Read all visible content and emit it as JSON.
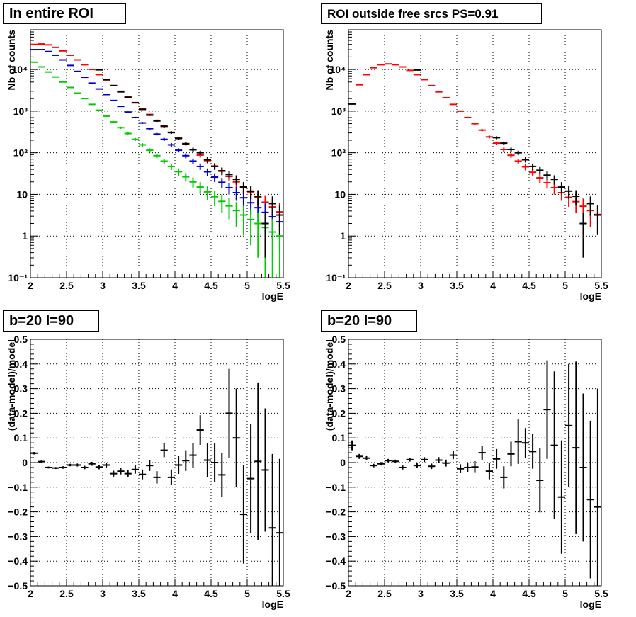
{
  "colors": {
    "data": "#000000",
    "model": "#ff0000",
    "blue": "#0000cc",
    "green": "#00cc00"
  },
  "chart_data": [
    {
      "type": "scatter",
      "title": "In entire ROI",
      "xlabel": "logE",
      "ylabel": "Nb of counts",
      "xlim": [
        2,
        5.5
      ],
      "ylim": [
        0.1,
        90000
      ],
      "yscale": "log",
      "grid": true,
      "x_ticks": [
        "2",
        "2.5",
        "3",
        "3.5",
        "4",
        "4.5",
        "5",
        "5.5"
      ],
      "y_ticks": [
        "10⁻¹",
        "1",
        "10",
        "10²",
        "10³",
        "10⁴"
      ],
      "x": [
        2.05,
        2.15,
        2.25,
        2.35,
        2.45,
        2.55,
        2.65,
        2.75,
        2.85,
        2.95,
        3.05,
        3.15,
        3.25,
        3.35,
        3.45,
        3.55,
        3.65,
        3.75,
        3.85,
        3.95,
        4.05,
        4.15,
        4.25,
        4.35,
        4.45,
        4.55,
        4.65,
        4.75,
        4.85,
        4.95,
        5.05,
        5.15,
        5.25,
        5.35,
        5.45
      ],
      "series": [
        {
          "color": "#ff0000",
          "values": [
            40000,
            41000,
            39000,
            34000,
            28000,
            22000,
            17000,
            13000,
            10000,
            7500,
            5600,
            4100,
            3000,
            2200,
            1600,
            1150,
            830,
            600,
            430,
            310,
            225,
            165,
            120,
            88,
            65,
            48,
            36,
            27,
            20,
            15,
            11.5,
            8.5,
            6.5,
            5,
            3.8
          ]
        },
        {
          "color": "#0000cc",
          "values": [
            30000,
            30000,
            27000,
            22000,
            17000,
            12500,
            9000,
            6500,
            4700,
            3400,
            2500,
            1800,
            1300,
            950,
            700,
            520,
            380,
            280,
            210,
            155,
            115,
            85,
            63,
            47,
            35,
            26,
            19.5,
            14.5,
            11,
            8.3,
            6.3,
            4.8,
            3.7,
            2.9,
            2.2
          ]
        },
        {
          "color": "#00cc00",
          "values": [
            15000,
            11500,
            8700,
            6600,
            5000,
            3700,
            2700,
            2000,
            1450,
            1050,
            760,
            550,
            400,
            290,
            210,
            155,
            115,
            85,
            63,
            47,
            35,
            26.5,
            20,
            15,
            11.5,
            8.8,
            6.8,
            5.3,
            4.1,
            3.2,
            2.5,
            2,
            1.6,
            1.25,
            1
          ]
        },
        {
          "color": "#000000",
          "values": [
            null,
            null,
            null,
            null,
            null,
            null,
            null,
            null,
            null,
            9800,
            5700,
            4100,
            2900,
            2150,
            1580,
            1100,
            800,
            580,
            435,
            305,
            220,
            165,
            118,
            100,
            68,
            47,
            37,
            30,
            23,
            15,
            12,
            9,
            2,
            6,
            3.2
          ]
        }
      ]
    },
    {
      "type": "scatter",
      "title": "ROI outside free srcs PS=0.91",
      "xlabel": "logE",
      "ylabel": "Nb of counts",
      "xlim": [
        2,
        5.5
      ],
      "ylim": [
        0.1,
        90000
      ],
      "yscale": "log",
      "grid": true,
      "x_ticks": [
        "2",
        "2.5",
        "3",
        "3.5",
        "4",
        "4.5",
        "5",
        "5.5"
      ],
      "y_ticks": [
        "10⁻¹",
        "1",
        "10",
        "10²",
        "10³",
        "10⁴"
      ],
      "x": [
        2.05,
        2.15,
        2.25,
        2.35,
        2.45,
        2.55,
        2.65,
        2.75,
        2.85,
        2.95,
        3.05,
        3.15,
        3.25,
        3.35,
        3.45,
        3.55,
        3.65,
        3.75,
        3.85,
        3.95,
        4.05,
        4.15,
        4.25,
        4.35,
        4.45,
        4.55,
        4.65,
        4.75,
        4.85,
        4.95,
        5.05,
        5.15,
        5.25,
        5.35,
        5.45
      ],
      "series": [
        {
          "color": "#ff0000",
          "values": [
            1500,
            4300,
            7500,
            11000,
            13000,
            13600,
            13000,
            11500,
            9500,
            7500,
            5700,
            4100,
            2900,
            2100,
            1450,
            1000,
            700,
            500,
            350,
            240,
            170,
            120,
            87,
            63,
            46,
            34,
            25,
            19,
            14.5,
            11,
            8.5,
            6.7,
            5.2,
            4.1,
            3.3
          ]
        },
        {
          "color": "#000000",
          "values": [
            1480,
            null,
            null,
            null,
            null,
            null,
            null,
            null,
            null,
            9700,
            null,
            null,
            null,
            null,
            null,
            null,
            null,
            null,
            null,
            null,
            230,
            170,
            120,
            100,
            68,
            47,
            38,
            29,
            23,
            15,
            12,
            9,
            2,
            6,
            3.2
          ]
        }
      ]
    },
    {
      "type": "scatter",
      "title": "b=20 l=90",
      "xlabel": "logE",
      "ylabel": "(data-model)/model",
      "xlim": [
        2,
        5.5
      ],
      "ylim": [
        -0.5,
        0.5
      ],
      "grid": true,
      "x_ticks": [
        "2",
        "2.5",
        "3",
        "3.5",
        "4",
        "4.5",
        "5",
        "5.5"
      ],
      "y_ticks": [
        "−0.5",
        "−0.4",
        "−0.3",
        "−0.2",
        "−0.1",
        "0",
        "0.1",
        "0.2",
        "0.3",
        "0.4",
        "0.5"
      ],
      "x": [
        2.05,
        2.15,
        2.25,
        2.35,
        2.45,
        2.55,
        2.65,
        2.75,
        2.85,
        2.95,
        3.05,
        3.15,
        3.25,
        3.35,
        3.45,
        3.55,
        3.65,
        3.75,
        3.85,
        3.95,
        4.05,
        4.15,
        4.25,
        4.35,
        4.45,
        4.55,
        4.65,
        4.75,
        4.85,
        4.95,
        5.05,
        5.15,
        5.25,
        5.35,
        5.45
      ],
      "series": [
        {
          "color": "#000000",
          "values": [
            0.038,
            0.004,
            -0.02,
            -0.022,
            -0.02,
            -0.01,
            -0.01,
            -0.02,
            -0.005,
            -0.018,
            -0.01,
            -0.045,
            -0.035,
            -0.045,
            -0.028,
            -0.048,
            -0.012,
            -0.06,
            0.05,
            -0.06,
            -0.01,
            0.008,
            0.03,
            0.132,
            0.01,
            0.0,
            -0.05,
            0.2,
            0.1,
            -0.21,
            -0.065,
            0.005,
            -0.03,
            -0.265,
            -0.285
          ],
          "errors": [
            0.005,
            0.004,
            0.004,
            0.004,
            0.005,
            0.005,
            0.006,
            0.007,
            0.008,
            0.009,
            0.01,
            0.012,
            0.013,
            0.015,
            0.017,
            0.02,
            0.022,
            0.025,
            0.028,
            0.032,
            0.036,
            0.042,
            0.05,
            0.06,
            0.07,
            0.08,
            0.09,
            0.18,
            0.2,
            0.2,
            0.22,
            0.32,
            0.25,
            0.3,
            0.3
          ]
        }
      ]
    },
    {
      "type": "scatter",
      "title": "b=20 l=90",
      "xlabel": "logE",
      "ylabel": "(data-model)/model",
      "xlim": [
        2,
        5.5
      ],
      "ylim": [
        -0.5,
        0.5
      ],
      "grid": true,
      "x_ticks": [
        "2",
        "2.5",
        "3",
        "3.5",
        "4",
        "4.5",
        "5",
        "5.5"
      ],
      "y_ticks": [
        "−0.5",
        "−0.4",
        "−0.3",
        "−0.2",
        "−0.1",
        "0",
        "0.1",
        "0.2",
        "0.3",
        "0.4",
        "0.5"
      ],
      "x": [
        2.05,
        2.15,
        2.25,
        2.35,
        2.45,
        2.55,
        2.65,
        2.75,
        2.85,
        2.95,
        3.05,
        3.15,
        3.25,
        3.35,
        3.45,
        3.55,
        3.65,
        3.75,
        3.85,
        3.95,
        4.05,
        4.15,
        4.25,
        4.35,
        4.45,
        4.55,
        4.65,
        4.75,
        4.85,
        4.95,
        5.05,
        5.15,
        5.25,
        5.35,
        5.45
      ],
      "series": [
        {
          "color": "#000000",
          "values": [
            0.07,
            0.025,
            0.018,
            -0.012,
            -0.005,
            0.008,
            0.005,
            -0.02,
            0.012,
            -0.012,
            0.012,
            -0.015,
            0.01,
            -0.002,
            0.03,
            -0.025,
            -0.02,
            -0.018,
            0.04,
            -0.035,
            0.015,
            -0.06,
            0.035,
            0.085,
            0.08,
            0.045,
            -0.072,
            0.215,
            0.07,
            -0.14,
            0.15,
            0.06,
            -0.02,
            -0.15,
            -0.18
          ],
          "errors": [
            0.02,
            0.01,
            0.008,
            0.007,
            0.007,
            0.007,
            0.007,
            0.008,
            0.008,
            0.009,
            0.01,
            0.011,
            0.012,
            0.014,
            0.016,
            0.018,
            0.02,
            0.024,
            0.028,
            0.033,
            0.04,
            0.045,
            0.05,
            0.09,
            0.06,
            0.07,
            0.13,
            0.2,
            0.3,
            0.23,
            0.25,
            0.35,
            0.3,
            0.32,
            0.48
          ]
        }
      ]
    }
  ]
}
